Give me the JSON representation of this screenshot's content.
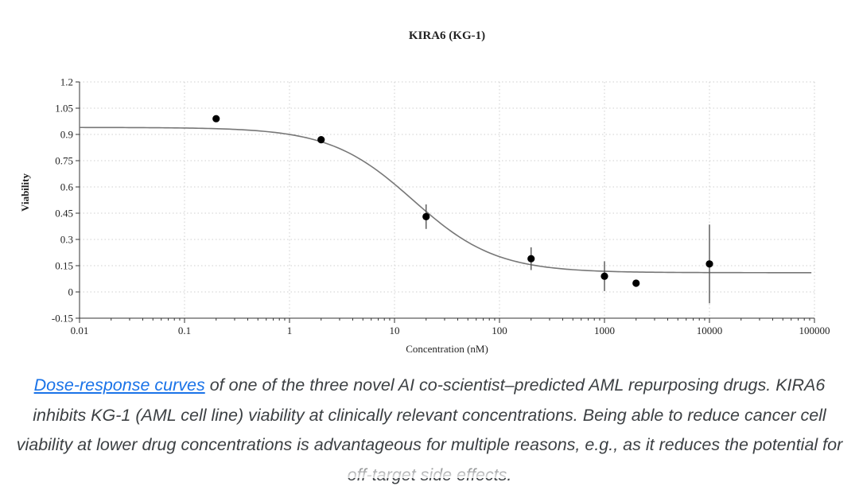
{
  "chart_data": {
    "type": "scatter",
    "title": "KIRA6 (KG-1)",
    "xlabel": "Concentration (nM)",
    "ylabel": "Viability",
    "xscale": "log",
    "xlim": [
      0.01,
      100000
    ],
    "ylim": [
      -0.15,
      1.2
    ],
    "xticks": [
      "0.01",
      "0.1",
      "1",
      "10",
      "100",
      "1000",
      "10000",
      "100000"
    ],
    "yticks": [
      "-0.15",
      "0",
      "0.15",
      "0.3",
      "0.45",
      "0.6",
      "0.75",
      "0.9",
      "1.05",
      "1.2"
    ],
    "grid": true,
    "points": [
      {
        "x": 0.2,
        "y": 0.99,
        "err": 0
      },
      {
        "x": 2,
        "y": 0.87,
        "err": 0
      },
      {
        "x": 20,
        "y": 0.43,
        "err": 0.07
      },
      {
        "x": 200,
        "y": 0.19,
        "err": 0.065
      },
      {
        "x": 1000,
        "y": 0.09,
        "err": 0.085
      },
      {
        "x": 2000,
        "y": 0.05,
        "err": 0
      },
      {
        "x": 10000,
        "y": 0.16,
        "err": 0.225
      }
    ],
    "fit_curve": {
      "top": 0.94,
      "bottom": 0.11,
      "ec50": 15,
      "hill": 1.1
    }
  },
  "caption": {
    "link_text": "Dose-response curves",
    "text": " of one of the three novel AI co-scientist–predicted AML repurposing drugs. KIRA6 inhibits KG-1 (AML cell line) viability at clinically relevant concentrations. Being able to reduce cancer cell viability at lower drug concentrations is advantageous for multiple reasons, e.g., as it reduces the potential for off-target side effects."
  }
}
